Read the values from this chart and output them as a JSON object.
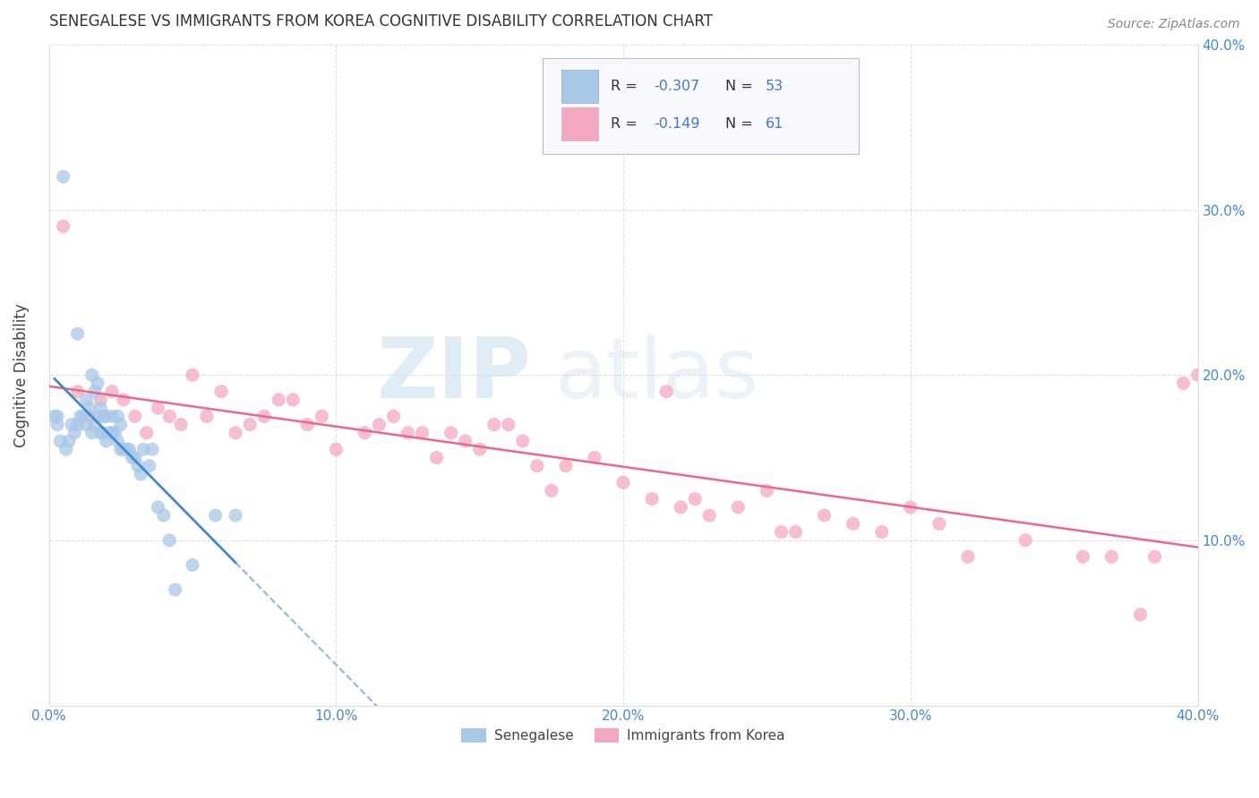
{
  "title": "SENEGALESE VS IMMIGRANTS FROM KOREA COGNITIVE DISABILITY CORRELATION CHART",
  "source": "Source: ZipAtlas.com",
  "ylabel": "Cognitive Disability",
  "xlim": [
    0.0,
    0.4
  ],
  "ylim": [
    0.0,
    0.4
  ],
  "x_ticks": [
    0.0,
    0.1,
    0.2,
    0.3,
    0.4
  ],
  "y_ticks": [
    0.0,
    0.1,
    0.2,
    0.3,
    0.4
  ],
  "senegalese_R": -0.307,
  "senegalese_N": 53,
  "korea_R": -0.149,
  "korea_N": 61,
  "senegalese_color": "#a8c8e8",
  "korea_color": "#f4a8c0",
  "trendline_senegalese_color": "#4488cc",
  "trendline_korea_color": "#ee6688",
  "background_color": "#ffffff",
  "grid_color": "#cccccc",
  "watermark_zip": "ZIP",
  "watermark_atlas": "atlas",
  "legend_labels": [
    "Senegalese",
    "Immigrants from Korea"
  ],
  "legend_text_color": "#4477cc",
  "senegalese_x": [
    0.002,
    0.003,
    0.003,
    0.004,
    0.005,
    0.006,
    0.007,
    0.008,
    0.009,
    0.01,
    0.01,
    0.011,
    0.012,
    0.013,
    0.013,
    0.014,
    0.015,
    0.015,
    0.016,
    0.016,
    0.017,
    0.017,
    0.018,
    0.018,
    0.019,
    0.019,
    0.02,
    0.02,
    0.021,
    0.022,
    0.022,
    0.023,
    0.024,
    0.024,
    0.025,
    0.025,
    0.026,
    0.027,
    0.028,
    0.029,
    0.03,
    0.031,
    0.032,
    0.033,
    0.035,
    0.036,
    0.038,
    0.04,
    0.042,
    0.044,
    0.05,
    0.058,
    0.065
  ],
  "senegalese_y": [
    0.175,
    0.17,
    0.175,
    0.16,
    0.32,
    0.155,
    0.16,
    0.17,
    0.165,
    0.17,
    0.225,
    0.175,
    0.175,
    0.185,
    0.17,
    0.18,
    0.165,
    0.2,
    0.17,
    0.19,
    0.175,
    0.195,
    0.165,
    0.18,
    0.165,
    0.175,
    0.16,
    0.175,
    0.165,
    0.165,
    0.175,
    0.165,
    0.16,
    0.175,
    0.155,
    0.17,
    0.155,
    0.155,
    0.155,
    0.15,
    0.15,
    0.145,
    0.14,
    0.155,
    0.145,
    0.155,
    0.12,
    0.115,
    0.1,
    0.07,
    0.085,
    0.115,
    0.115
  ],
  "korea_x": [
    0.005,
    0.01,
    0.014,
    0.018,
    0.022,
    0.026,
    0.03,
    0.034,
    0.038,
    0.042,
    0.046,
    0.05,
    0.055,
    0.06,
    0.065,
    0.07,
    0.075,
    0.08,
    0.085,
    0.09,
    0.095,
    0.1,
    0.11,
    0.115,
    0.12,
    0.125,
    0.13,
    0.135,
    0.14,
    0.145,
    0.15,
    0.155,
    0.16,
    0.165,
    0.17,
    0.175,
    0.18,
    0.19,
    0.2,
    0.21,
    0.215,
    0.22,
    0.225,
    0.23,
    0.24,
    0.25,
    0.255,
    0.26,
    0.27,
    0.28,
    0.29,
    0.3,
    0.31,
    0.32,
    0.34,
    0.36,
    0.37,
    0.38,
    0.385,
    0.395,
    0.4
  ],
  "korea_y": [
    0.29,
    0.19,
    0.175,
    0.185,
    0.19,
    0.185,
    0.175,
    0.165,
    0.18,
    0.175,
    0.17,
    0.2,
    0.175,
    0.19,
    0.165,
    0.17,
    0.175,
    0.185,
    0.185,
    0.17,
    0.175,
    0.155,
    0.165,
    0.17,
    0.175,
    0.165,
    0.165,
    0.15,
    0.165,
    0.16,
    0.155,
    0.17,
    0.17,
    0.16,
    0.145,
    0.13,
    0.145,
    0.15,
    0.135,
    0.125,
    0.19,
    0.12,
    0.125,
    0.115,
    0.12,
    0.13,
    0.105,
    0.105,
    0.115,
    0.11,
    0.105,
    0.12,
    0.11,
    0.09,
    0.1,
    0.09,
    0.09,
    0.055,
    0.09,
    0.195,
    0.2
  ]
}
